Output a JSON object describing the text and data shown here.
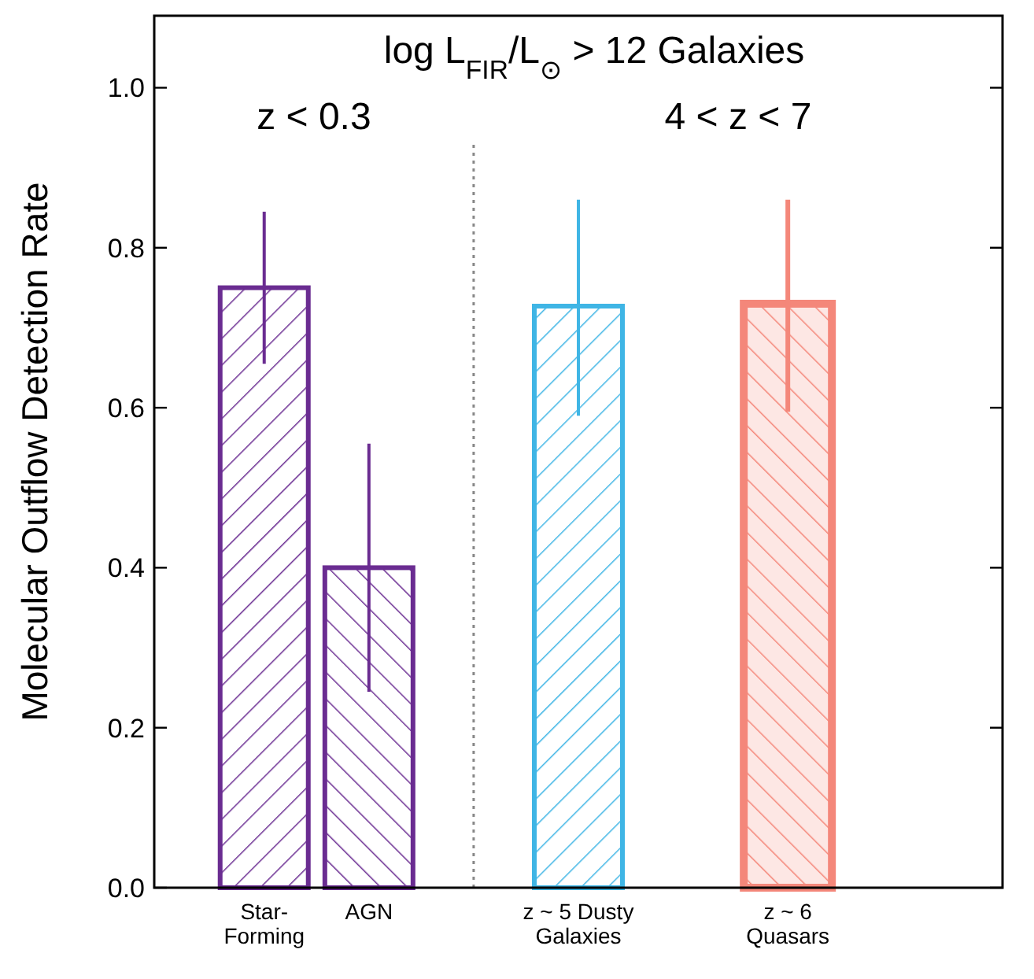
{
  "chart_data": {
    "type": "bar",
    "title": "log L$_{FIR}$/L$_{⊙}$ > 12 Galaxies",
    "ylabel": "Molecular Outflow Detection Rate",
    "annotations": [
      "z < 0.3",
      "4 < z < 7"
    ],
    "categories": [
      "Star-Forming",
      "AGN",
      null,
      "z ~ 5 Dusty Galaxies",
      null,
      "z ~ 6 Quasars",
      null
    ],
    "values": [
      0.75,
      0.4,
      null,
      0.727,
      null,
      0.73,
      null
    ],
    "colors": [
      "#6a2c91",
      "#6a2c91",
      null,
      "#3fb5e5",
      null,
      "#f4877a",
      null
    ],
    "errors": [
      [
        0.655,
        0.845
      ],
      [
        0.245,
        0.555
      ],
      null,
      [
        0.59,
        0.86
      ],
      null,
      [
        0.595,
        0.86
      ],
      null
    ],
    "ylim": [
      0,
      1.09
    ],
    "yticks": [
      {
        "value": 0,
        "label": "0.0"
      },
      {
        "value": 0.2,
        "label": "0.2"
      },
      {
        "value": 0.4,
        "label": "0.4"
      },
      {
        "value": 0.6,
        "label": "0.6"
      },
      {
        "value": 0.8,
        "label": "0.8"
      },
      {
        "value": 1,
        "label": "1.0"
      }
    ],
    "data_labels": false
  }
}
